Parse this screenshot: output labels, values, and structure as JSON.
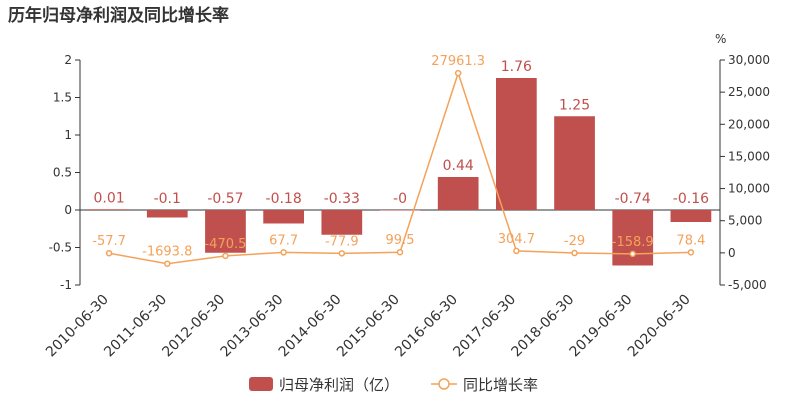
{
  "chart_data": {
    "type": "bar",
    "title": "历年归母净利润及同比增长率",
    "categories": [
      "2010-06-30",
      "2011-06-30",
      "2012-06-30",
      "2013-06-30",
      "2014-06-30",
      "2015-06-30",
      "2016-06-30",
      "2017-06-30",
      "2018-06-30",
      "2019-06-30",
      "2020-06-30"
    ],
    "series": [
      {
        "name": "归母净利润（亿）",
        "type": "bar",
        "axis": "left",
        "values": [
          0.01,
          -0.1,
          -0.57,
          -0.18,
          -0.33,
          -0.001,
          0.44,
          1.76,
          1.25,
          -0.74,
          -0.16
        ],
        "labels": [
          "0.01",
          "-0.1",
          "-0.57",
          "-0.18",
          "-0.33",
          "-0",
          "0.44",
          "1.76",
          "1.25",
          "-0.74",
          "-0.16"
        ],
        "color": "#c0504d"
      },
      {
        "name": "同比增长率",
        "type": "line",
        "axis": "right",
        "values": [
          -57.7,
          -1693.8,
          -470.5,
          67.7,
          -77.9,
          99.5,
          27961.3,
          304.7,
          -29,
          -158.9,
          78.4
        ],
        "labels": [
          "-57.7",
          "-1693.8",
          "-470.5",
          "67.7",
          "-77.9",
          "99.5",
          "27961.3",
          "304.7",
          "-29",
          "-158.9",
          "78.4"
        ],
        "color": "#f4a259"
      }
    ],
    "left_axis": {
      "min": -1,
      "max": 2,
      "ticks": [
        -1,
        -0.5,
        0,
        0.5,
        1,
        1.5,
        2
      ],
      "tick_labels": [
        "-1",
        "-0.5",
        "0",
        "0.5",
        "1",
        "1.5",
        "2"
      ]
    },
    "right_axis": {
      "unit": "%",
      "min": -5000,
      "max": 30000,
      "ticks": [
        -5000,
        0,
        5000,
        10000,
        15000,
        20000,
        25000,
        30000
      ],
      "tick_labels": [
        "-5,000",
        "0",
        "5,000",
        "10,000",
        "15,000",
        "20,000",
        "25,000",
        "30,000"
      ]
    },
    "grid": false,
    "legend_position": "bottom-center",
    "x_tick_rotation": "45 degrees"
  }
}
